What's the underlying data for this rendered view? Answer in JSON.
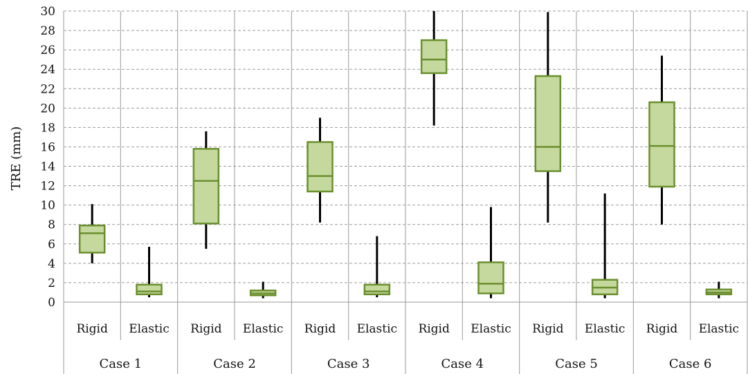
{
  "chart_data": {
    "type": "boxplot",
    "ylabel": "TRE (mm)",
    "ylim": [
      0,
      30
    ],
    "yticks": [
      0,
      2,
      4,
      6,
      8,
      10,
      12,
      14,
      16,
      18,
      20,
      22,
      24,
      26,
      28,
      30
    ],
    "grid": true,
    "colors": {
      "box_fill": "#c5d99e",
      "box_stroke": "#6a8f2e",
      "whisker": "#000000",
      "grid": "#9a9a9a",
      "axis": "#999999"
    },
    "groups": [
      {
        "label": "Case 1",
        "categories": [
          {
            "label": "Rigid",
            "min": 4.0,
            "q1": 5.1,
            "median": 7.1,
            "q3": 7.9,
            "max": 10.1
          },
          {
            "label": "Elastic",
            "min": 0.5,
            "q1": 0.8,
            "median": 1.1,
            "q3": 1.8,
            "max": 5.7
          }
        ]
      },
      {
        "label": "Case 2",
        "categories": [
          {
            "label": "Rigid",
            "min": 5.5,
            "q1": 8.1,
            "median": 12.5,
            "q3": 15.8,
            "max": 17.6
          },
          {
            "label": "Elastic",
            "min": 0.4,
            "q1": 0.7,
            "median": 0.9,
            "q3": 1.2,
            "max": 2.1
          }
        ]
      },
      {
        "label": "Case 3",
        "categories": [
          {
            "label": "Rigid",
            "min": 8.2,
            "q1": 11.4,
            "median": 13.0,
            "q3": 16.5,
            "max": 19.0
          },
          {
            "label": "Elastic",
            "min": 0.5,
            "q1": 0.8,
            "median": 1.1,
            "q3": 1.8,
            "max": 6.8
          }
        ]
      },
      {
        "label": "Case 4",
        "categories": [
          {
            "label": "Rigid",
            "min": 18.2,
            "q1": 23.6,
            "median": 25.0,
            "q3": 27.0,
            "max": 30.0
          },
          {
            "label": "Elastic",
            "min": 0.4,
            "q1": 0.9,
            "median": 1.9,
            "q3": 4.1,
            "max": 9.8
          }
        ]
      },
      {
        "label": "Case 5",
        "categories": [
          {
            "label": "Rigid",
            "min": 8.2,
            "q1": 13.5,
            "median": 16.0,
            "q3": 23.3,
            "max": 29.9
          },
          {
            "label": "Elastic",
            "min": 0.4,
            "q1": 0.8,
            "median": 1.5,
            "q3": 2.3,
            "max": 11.2
          }
        ]
      },
      {
        "label": "Case 6",
        "categories": [
          {
            "label": "Rigid",
            "min": 8.0,
            "q1": 11.9,
            "median": 16.1,
            "q3": 20.6,
            "max": 25.4
          },
          {
            "label": "Elastic",
            "min": 0.4,
            "q1": 0.8,
            "median": 1.0,
            "q3": 1.3,
            "max": 2.1
          }
        ]
      }
    ]
  }
}
